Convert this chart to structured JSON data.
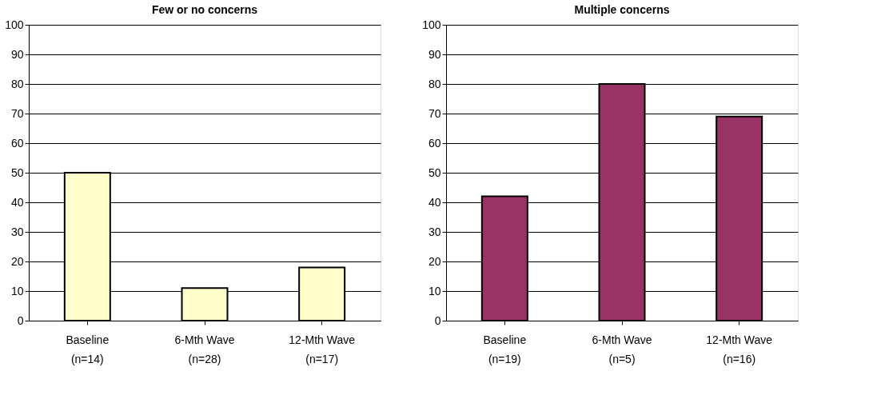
{
  "chart_data": [
    {
      "type": "bar",
      "title": "Few or no concerns",
      "categories": [
        "Baseline\n(n=14)",
        "6-Mth Wave\n(n=28)",
        "12-Mth Wave\n(n=17)"
      ],
      "series": [
        {
          "color": "#ffffcc",
          "values": [
            50,
            11,
            18
          ]
        }
      ],
      "ylim": [
        0,
        100
      ],
      "yticks": [
        0,
        10,
        20,
        30,
        40,
        50,
        60,
        70,
        80,
        90,
        100
      ],
      "grid": "y",
      "legend": false
    },
    {
      "type": "bar",
      "title": "Multiple concerns",
      "categories": [
        "Baseline\n(n=19)",
        "6-Mth Wave\n(n=5)",
        "12-Mth Wave\n(n=16)"
      ],
      "series": [
        {
          "color": "#993366",
          "values": [
            42,
            80,
            69
          ]
        }
      ],
      "ylim": [
        0,
        100
      ],
      "yticks": [
        0,
        10,
        20,
        30,
        40,
        50,
        60,
        70,
        80,
        90,
        100
      ],
      "grid": "y",
      "legend": false
    }
  ]
}
